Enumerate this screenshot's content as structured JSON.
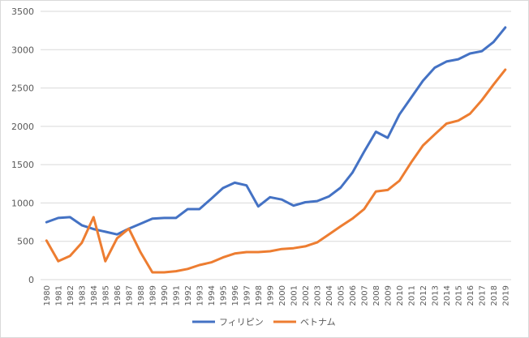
{
  "chart_data": {
    "type": "line",
    "title": "",
    "xlabel": "",
    "ylabel": "",
    "ylim": [
      0,
      3500
    ],
    "yticks": [
      "0",
      "500",
      "1000",
      "1500",
      "2000",
      "2500",
      "3000",
      "3500"
    ],
    "grid": true,
    "legend_position": "bottom",
    "categories": [
      "1980",
      "1981",
      "1982",
      "1983",
      "1984",
      "1985",
      "1986",
      "1987",
      "1988",
      "1989",
      "1990",
      "1991",
      "1992",
      "1993",
      "1994",
      "1995",
      "1996",
      "1997",
      "1998",
      "1999",
      "2000",
      "2001",
      "2002",
      "2003",
      "2004",
      "2005",
      "2006",
      "2007",
      "2008",
      "2009",
      "2010",
      "2011",
      "2012",
      "2013",
      "2014",
      "2015",
      "2016",
      "2017",
      "2018",
      "2019"
    ],
    "series": [
      {
        "name": "フィリピン",
        "color": "#4472c4",
        "values": [
          750,
          805,
          815,
          710,
          660,
          625,
          590,
          665,
          730,
          795,
          805,
          805,
          920,
          920,
          1055,
          1195,
          1265,
          1230,
          955,
          1075,
          1045,
          965,
          1010,
          1025,
          1085,
          1200,
          1395,
          1670,
          1930,
          1850,
          2155,
          2375,
          2595,
          2765,
          2845,
          2875,
          2950,
          2980,
          3100,
          3290
        ]
      },
      {
        "name": "ベトナム",
        "color": "#ed7d31",
        "values": [
          510,
          240,
          310,
          480,
          815,
          240,
          540,
          665,
          355,
          95,
          95,
          110,
          140,
          190,
          225,
          290,
          340,
          360,
          360,
          370,
          400,
          410,
          435,
          485,
          590,
          695,
          795,
          920,
          1150,
          1170,
          1290,
          1530,
          1750,
          1895,
          2035,
          2075,
          2165,
          2340,
          2545,
          2740
        ]
      }
    ]
  }
}
